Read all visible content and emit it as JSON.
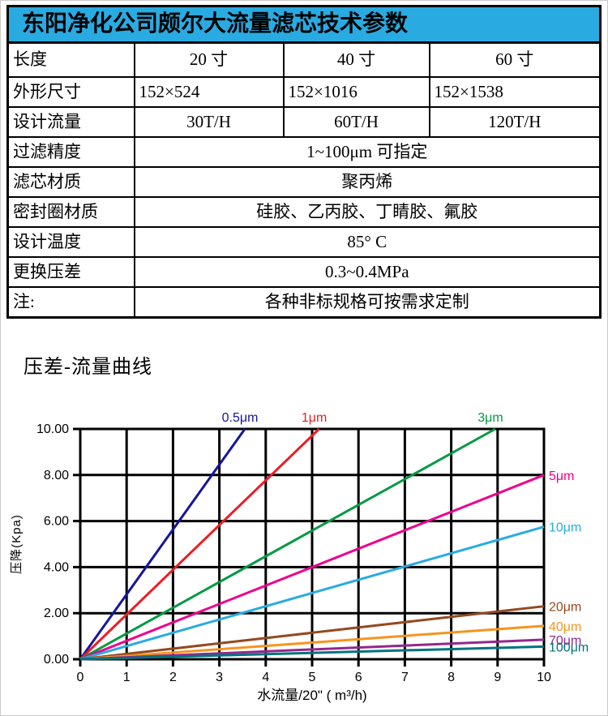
{
  "table": {
    "title": "东阳净化公司颇尔大流量滤芯技术参数",
    "header_bg": "#29abe2",
    "rows": [
      {
        "label": "长度",
        "values": [
          "20 寸",
          "40 寸",
          "60 寸"
        ],
        "align": "center"
      },
      {
        "label": "外形尺寸",
        "values": [
          "152×524",
          "152×1016",
          "152×1538"
        ],
        "align": "left"
      },
      {
        "label": "设计流量",
        "values": [
          "30T/H",
          "60T/H",
          "120T/H"
        ],
        "align": "center"
      },
      {
        "label": "过滤精度",
        "span": "1~100μm 可指定"
      },
      {
        "label": "滤芯材质",
        "span": "聚丙烯"
      },
      {
        "label": "密封圈材质",
        "span": "硅胶、乙丙胶、丁睛胶、氟胶"
      },
      {
        "label": "设计温度",
        "span": "85° C"
      },
      {
        "label": "更换压差",
        "span": "0.3~0.4MPa"
      },
      {
        "label": "注:",
        "span": "各种非标规格可按需求定制"
      }
    ]
  },
  "section_heading": "压差-流量曲线",
  "chart_data": {
    "type": "line",
    "title": "",
    "xlabel": "水流量/20\" ( m³/h)",
    "ylabel": "压降(Kpa)",
    "xlim": [
      0,
      10
    ],
    "ylim": [
      0,
      10
    ],
    "x_ticks": [
      "0",
      "1",
      "2",
      "3",
      "4",
      "5",
      "6",
      "7",
      "8",
      "9",
      "10"
    ],
    "y_ticks": [
      "0.00",
      "2.00",
      "4.00",
      "6.00",
      "8.00",
      "10.00"
    ],
    "grid": true,
    "legend_position": "line-ends",
    "series": [
      {
        "name": "0.5μm",
        "color": "#15159b",
        "points": [
          [
            0,
            0
          ],
          [
            3.55,
            10
          ]
        ],
        "label_pos": "top"
      },
      {
        "name": "1μm",
        "color": "#ed1c24",
        "points": [
          [
            0,
            0
          ],
          [
            5.15,
            10
          ]
        ],
        "label_pos": "top"
      },
      {
        "name": "3μm",
        "color": "#009a44",
        "points": [
          [
            0,
            0
          ],
          [
            8.95,
            10
          ]
        ],
        "label_pos": "top"
      },
      {
        "name": "5μm",
        "color": "#ec008c",
        "points": [
          [
            0,
            0
          ],
          [
            10,
            8.0
          ]
        ],
        "label_pos": "right"
      },
      {
        "name": "10μm",
        "color": "#29abe2",
        "points": [
          [
            0,
            0
          ],
          [
            10,
            5.75
          ]
        ],
        "label_pos": "right"
      },
      {
        "name": "20μm",
        "color": "#944a1f",
        "points": [
          [
            0,
            0
          ],
          [
            10,
            2.3
          ]
        ],
        "label_pos": "right"
      },
      {
        "name": "40μm",
        "color": "#f7941d",
        "points": [
          [
            0,
            0
          ],
          [
            10,
            1.45
          ]
        ],
        "label_pos": "right"
      },
      {
        "name": "70μm",
        "color": "#93278f",
        "points": [
          [
            0,
            0
          ],
          [
            10,
            0.85
          ]
        ],
        "label_pos": "right"
      },
      {
        "name": "100μm",
        "color": "#00737e",
        "points": [
          [
            0,
            0
          ],
          [
            10,
            0.55
          ]
        ],
        "label_pos": "right"
      }
    ]
  }
}
